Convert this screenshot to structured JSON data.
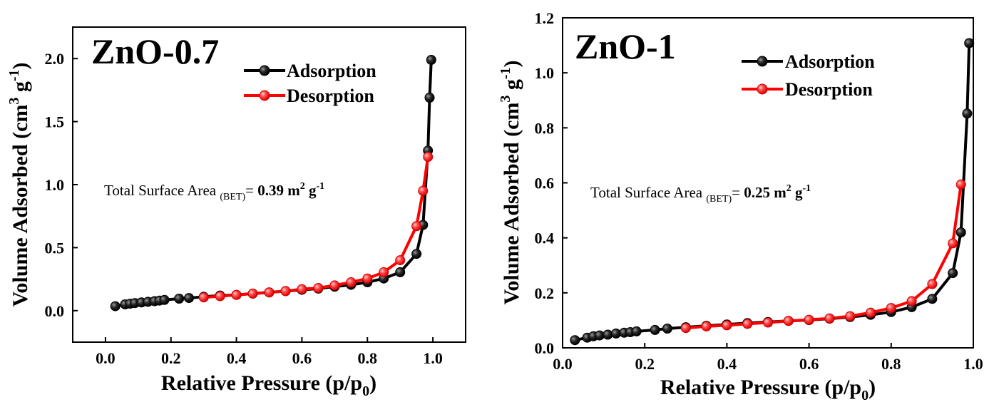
{
  "chart_data": [
    {
      "type": "line",
      "title": "ZnO-0.7",
      "xlabel": "Relative Pressure (p/p0)",
      "xlabel_parts": [
        "Relative Pressure (p/p",
        "0",
        ")"
      ],
      "ylabel": "Volume Adsorbed (cm3 g-1)",
      "ylabel_parts": [
        "Volume Adsorbed (cm",
        "3",
        " g",
        "-1",
        ")"
      ],
      "xlim": [
        -0.1,
        1.1
      ],
      "ylim": [
        -0.25,
        2.25
      ],
      "x_ticks": [
        0.0,
        0.2,
        0.4,
        0.6,
        0.8,
        1.0
      ],
      "x_tick_labels": [
        "0.0",
        "0.2",
        "0.4",
        "0.6",
        "0.8",
        "1.0"
      ],
      "y_ticks": [
        0.0,
        0.5,
        1.0,
        1.5,
        2.0
      ],
      "y_tick_labels": [
        "0.0",
        "0.5",
        "1.0",
        "1.5",
        "2.0"
      ],
      "legend_position": "top-right",
      "annotation": {
        "prefix": "Total Surface Area ",
        "sub": "(BET)",
        "eq": "= ",
        "value": "0.39 m",
        "sup1": "2",
        "unit": " g",
        "sup2": "-1"
      },
      "series": [
        {
          "name": "Adsorption",
          "color": "#000000",
          "marker": "black-sphere",
          "x": [
            0.03,
            0.06,
            0.075,
            0.09,
            0.11,
            0.13,
            0.15,
            0.165,
            0.18,
            0.225,
            0.255,
            0.3,
            0.35,
            0.4,
            0.45,
            0.5,
            0.55,
            0.6,
            0.65,
            0.7,
            0.75,
            0.8,
            0.85,
            0.9,
            0.95,
            0.97,
            0.985,
            0.99,
            0.995
          ],
          "y": [
            0.035,
            0.05,
            0.055,
            0.06,
            0.065,
            0.07,
            0.075,
            0.08,
            0.085,
            0.095,
            0.1,
            0.11,
            0.12,
            0.125,
            0.135,
            0.145,
            0.155,
            0.165,
            0.175,
            0.19,
            0.205,
            0.225,
            0.255,
            0.305,
            0.45,
            0.68,
            1.27,
            1.69,
            1.99
          ]
        },
        {
          "name": "Desorption",
          "color": "#ff0000",
          "marker": "red-sphere",
          "x": [
            0.3,
            0.35,
            0.4,
            0.45,
            0.5,
            0.55,
            0.6,
            0.65,
            0.7,
            0.75,
            0.8,
            0.85,
            0.9,
            0.95,
            0.97,
            0.985
          ],
          "y": [
            0.105,
            0.115,
            0.125,
            0.135,
            0.145,
            0.155,
            0.17,
            0.18,
            0.2,
            0.225,
            0.255,
            0.305,
            0.4,
            0.67,
            0.95,
            1.22
          ]
        }
      ]
    },
    {
      "type": "line",
      "title": "ZnO-1",
      "xlabel": "Relative Pressure (p/p0)",
      "xlabel_parts": [
        "Relative Pressure (p/p",
        "0",
        ")"
      ],
      "ylabel": "Volume Adsorbed (cm3 g-1)",
      "ylabel_parts": [
        "Volume Adsorbed (cm",
        "3",
        " g",
        "-1",
        ")"
      ],
      "xlim": [
        0.0,
        1.0
      ],
      "ylim": [
        0.0,
        1.2
      ],
      "x_ticks": [
        0.0,
        0.2,
        0.4,
        0.6,
        0.8,
        1.0
      ],
      "x_tick_labels": [
        "0.0",
        "0.2",
        "0.4",
        "0.6",
        "0.8",
        "1.0"
      ],
      "y_ticks": [
        0.0,
        0.2,
        0.4,
        0.6,
        0.8,
        1.0,
        1.2
      ],
      "y_tick_labels": [
        "0.0",
        "0.2",
        "0.4",
        "0.6",
        "0.8",
        "1.0",
        "1.2"
      ],
      "legend_position": "top-right",
      "annotation": {
        "prefix": "Total Surface Area ",
        "sub": "(BET)",
        "eq": "= ",
        "value": "0.25 m",
        "sup1": "2",
        "unit": " g",
        "sup2": "-1"
      },
      "series": [
        {
          "name": "Adsorption",
          "color": "#000000",
          "marker": "black-sphere",
          "x": [
            0.03,
            0.06,
            0.075,
            0.09,
            0.11,
            0.13,
            0.15,
            0.165,
            0.18,
            0.225,
            0.255,
            0.3,
            0.35,
            0.4,
            0.45,
            0.5,
            0.55,
            0.6,
            0.65,
            0.7,
            0.75,
            0.8,
            0.85,
            0.9,
            0.95,
            0.97,
            0.985,
            0.99
          ],
          "y": [
            0.028,
            0.037,
            0.042,
            0.045,
            0.048,
            0.052,
            0.055,
            0.057,
            0.06,
            0.065,
            0.07,
            0.075,
            0.08,
            0.085,
            0.09,
            0.094,
            0.098,
            0.101,
            0.106,
            0.112,
            0.12,
            0.13,
            0.148,
            0.178,
            0.272,
            0.42,
            0.852,
            1.108
          ]
        },
        {
          "name": "Desorption",
          "color": "#ff0000",
          "marker": "red-sphere",
          "x": [
            0.3,
            0.35,
            0.4,
            0.45,
            0.5,
            0.55,
            0.6,
            0.65,
            0.7,
            0.75,
            0.8,
            0.85,
            0.9,
            0.95,
            0.97
          ],
          "y": [
            0.072,
            0.078,
            0.082,
            0.087,
            0.092,
            0.098,
            0.102,
            0.107,
            0.115,
            0.128,
            0.145,
            0.17,
            0.232,
            0.38,
            0.594
          ]
        }
      ]
    }
  ]
}
